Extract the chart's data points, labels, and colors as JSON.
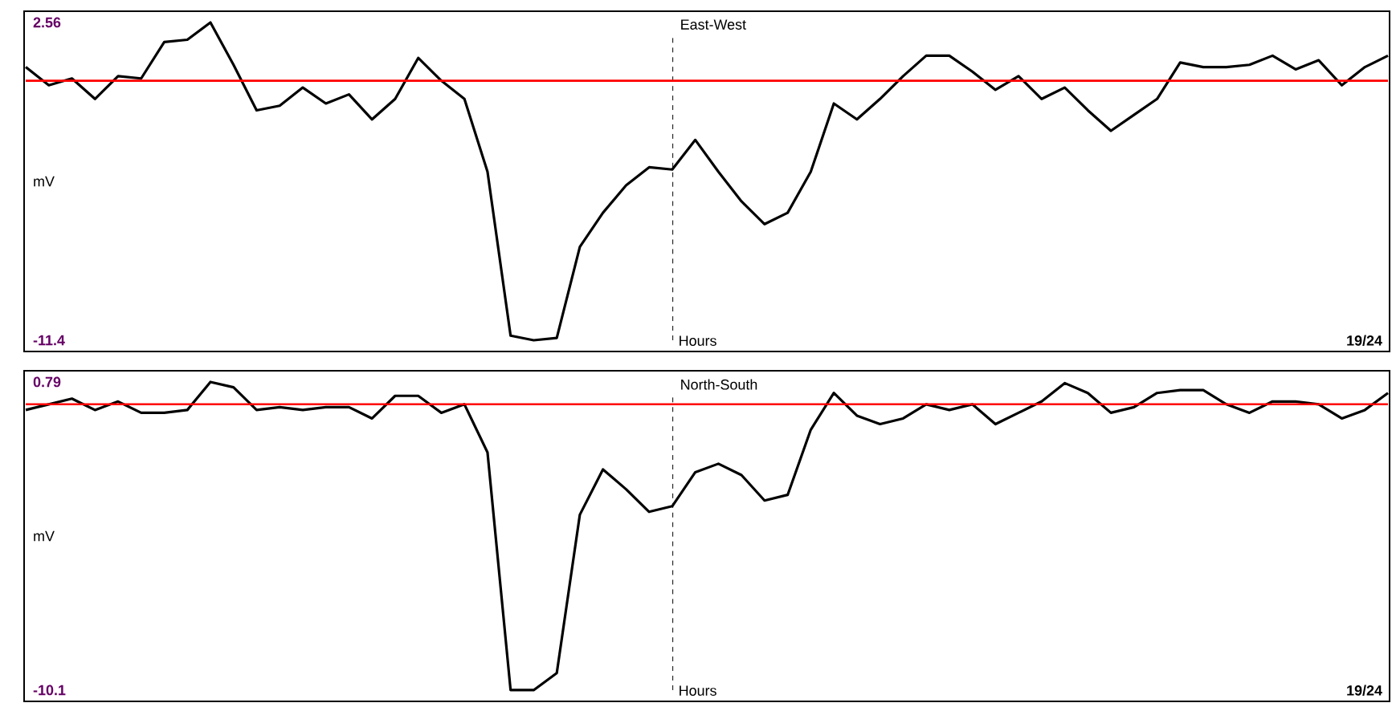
{
  "chart_data": [
    {
      "type": "line",
      "title": "East-West",
      "xlabel": "Hours",
      "ylabel": "mV",
      "annotations": [
        "19/24"
      ],
      "tick_labels": "y",
      "categories": [
        null,
        null,
        null,
        null,
        null,
        null,
        null,
        null,
        null,
        null,
        null,
        null,
        null,
        null,
        null,
        null,
        null,
        null,
        null,
        null,
        null,
        null,
        null,
        null,
        null,
        null,
        null,
        null,
        null,
        null,
        null,
        null,
        null,
        null,
        null,
        null,
        null,
        null,
        null,
        null,
        null,
        null,
        null,
        null,
        null,
        null,
        null,
        null,
        null,
        null,
        null,
        null,
        null,
        null,
        null,
        null,
        null,
        null,
        null,
        null
      ],
      "series": [
        {
          "color": "#000000",
          "values": [
            0.6,
            -0.2,
            0.1,
            -0.8,
            0.2,
            0.1,
            1.7,
            1.8,
            2.56,
            0.7,
            -1.3,
            -1.1,
            -0.3,
            -1.0,
            -0.6,
            -1.7,
            -0.8,
            1.0,
            0.0,
            -0.8,
            -4.0,
            -11.2,
            -11.4,
            -11.3,
            -7.3,
            -5.8,
            -4.6,
            -3.8,
            -3.9,
            -2.6,
            -4.0,
            -5.3,
            -6.3,
            -5.8,
            -4.0,
            -1.0,
            -1.7,
            -0.8,
            0.2,
            1.1,
            1.1,
            0.4,
            -0.4,
            0.2,
            -0.8,
            -0.3,
            -1.3,
            -2.2,
            -1.5,
            -0.8,
            0.8,
            0.6,
            0.6,
            0.7,
            1.1,
            0.5,
            0.9,
            -0.2,
            0.6,
            1.1
          ]
        }
      ],
      "ylim": [
        -11.4,
        2.56
      ],
      "yticks": [
        -11.4,
        2.56
      ],
      "ref_lines": [
        {
          "axis": "y",
          "value": 0,
          "color": "#ff0000"
        }
      ]
    },
    {
      "type": "line",
      "title": "North-South",
      "xlabel": "Hours",
      "ylabel": "mV",
      "annotations": [
        "19/24"
      ],
      "tick_labels": "y",
      "categories": [
        null,
        null,
        null,
        null,
        null,
        null,
        null,
        null,
        null,
        null,
        null,
        null,
        null,
        null,
        null,
        null,
        null,
        null,
        null,
        null,
        null,
        null,
        null,
        null,
        null,
        null,
        null,
        null,
        null,
        null,
        null,
        null,
        null,
        null,
        null,
        null,
        null,
        null,
        null,
        null,
        null,
        null,
        null,
        null,
        null,
        null,
        null,
        null,
        null,
        null,
        null,
        null,
        null,
        null,
        null,
        null,
        null,
        null,
        null,
        null
      ],
      "series": [
        {
          "color": "#000000",
          "values": [
            -0.2,
            0.0,
            0.2,
            -0.2,
            0.1,
            -0.3,
            -0.3,
            -0.2,
            0.79,
            0.6,
            -0.2,
            -0.1,
            -0.2,
            -0.1,
            -0.1,
            -0.5,
            0.3,
            0.3,
            -0.3,
            0.0,
            -1.7,
            -10.1,
            -10.1,
            -9.5,
            -3.9,
            -2.3,
            -3.0,
            -3.8,
            -3.6,
            -2.4,
            -2.1,
            -2.5,
            -3.4,
            -3.2,
            -0.9,
            0.4,
            -0.4,
            -0.7,
            -0.5,
            0.0,
            -0.2,
            0.0,
            -0.7,
            -0.3,
            0.1,
            0.75,
            0.4,
            -0.3,
            -0.1,
            0.4,
            0.5,
            0.5,
            0.0,
            -0.3,
            0.1,
            0.1,
            0.0,
            -0.5,
            -0.2,
            0.4
          ]
        }
      ],
      "ylim": [
        -10.1,
        0.79
      ],
      "yticks": [
        -10.1,
        0.79
      ],
      "ref_lines": [
        {
          "axis": "y",
          "value": 0,
          "color": "#ff0000"
        }
      ]
    }
  ]
}
